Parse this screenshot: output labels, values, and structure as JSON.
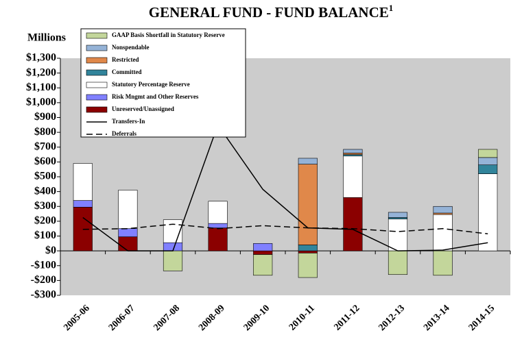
{
  "chart_data": {
    "type": "stacked_bar_line",
    "title": "GENERAL FUND - FUND BALANCE",
    "title_footnote": "1",
    "y_label": "Millions",
    "categories": [
      "2005-06",
      "2006-07",
      "2007-08",
      "2008-09",
      "2009-10",
      "2010-11",
      "2011-12",
      "2012-13",
      "2013-14",
      "2014-15"
    ],
    "series": [
      {
        "name": "Unreserved/Unassigned",
        "color": "#8b0000",
        "values": [
          295,
          95,
          0,
          155,
          -25,
          -15,
          360,
          0,
          0,
          0
        ]
      },
      {
        "name": "Risk Mngmt and Other Reserves",
        "color": "#8080ff",
        "values": [
          45,
          55,
          55,
          30,
          50,
          0,
          0,
          0,
          0,
          0
        ]
      },
      {
        "name": "Statutory Percentage Reserve",
        "color": "#ffffff",
        "values": [
          250,
          260,
          155,
          150,
          0,
          0,
          280,
          215,
          245,
          520
        ]
      },
      {
        "name": "Committed",
        "color": "#31849b",
        "values": [
          0,
          0,
          0,
          0,
          0,
          40,
          10,
          10,
          0,
          60
        ]
      },
      {
        "name": "Restricted",
        "color": "#e0884a",
        "values": [
          0,
          0,
          0,
          0,
          0,
          545,
          10,
          0,
          10,
          0
        ]
      },
      {
        "name": "Nonspendable",
        "color": "#95b3d7",
        "values": [
          0,
          0,
          0,
          0,
          0,
          40,
          25,
          35,
          45,
          50
        ]
      },
      {
        "name": "GAAP Basis Shortfall in Statutory Reserve",
        "color": "#c3d69b",
        "values": [
          0,
          0,
          -135,
          0,
          -140,
          -165,
          0,
          -160,
          -165,
          55
        ]
      }
    ],
    "line_series": [
      {
        "name": "Transfers-In",
        "color": "#000000",
        "dash": false,
        "values": [
          225,
          0,
          0,
          850,
          415,
          155,
          145,
          0,
          5,
          55
        ]
      },
      {
        "name": "Deferrals",
        "color": "#000000",
        "dash": true,
        "values": [
          145,
          150,
          180,
          150,
          170,
          155,
          150,
          130,
          150,
          115
        ]
      }
    ],
    "ylim": [
      -300,
      1300
    ],
    "yticks": [
      {
        "value": -300,
        "label": "-$300"
      },
      {
        "value": -200,
        "label": "-$200"
      },
      {
        "value": -100,
        "label": "-$100"
      },
      {
        "value": 0,
        "label": "$0"
      },
      {
        "value": 100,
        "label": "$100"
      },
      {
        "value": 200,
        "label": "$200"
      },
      {
        "value": 300,
        "label": "$300"
      },
      {
        "value": 400,
        "label": "$400"
      },
      {
        "value": 500,
        "label": "$500"
      },
      {
        "value": 600,
        "label": "$600"
      },
      {
        "value": 700,
        "label": "$700"
      },
      {
        "value": 800,
        "label": "$800"
      },
      {
        "value": 900,
        "label": "$900"
      },
      {
        "value": 1000,
        "label": "$1,000"
      },
      {
        "value": 1100,
        "label": "$1,100"
      },
      {
        "value": 1200,
        "label": "$1,200"
      },
      {
        "value": 1300,
        "label": "$1,300"
      }
    ]
  }
}
